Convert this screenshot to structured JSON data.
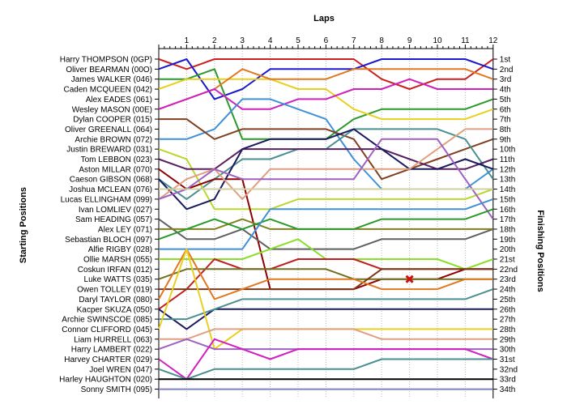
{
  "chart_data": {
    "type": "line",
    "title": "",
    "xlabel": "Laps",
    "ylabel_left": "Starting Positions",
    "ylabel_right": "Finishing Positions",
    "x": [
      0,
      1,
      2,
      3,
      4,
      5,
      6,
      7,
      8,
      9,
      10,
      11,
      12
    ],
    "x_tick_labels": [
      "1",
      "2",
      "3",
      "4",
      "5",
      "6",
      "7",
      "8",
      "9",
      "10",
      "11",
      "12"
    ],
    "ylim": [
      1,
      34
    ],
    "y_inverted": true,
    "grid": "vertical",
    "starting_labels": [
      "Harry THOMPSON (0GP)",
      "Oliver BEARMAN (00O)",
      "James WALKER (046)",
      "Caden MCQUEEN (042)",
      "Alex EADES (061)",
      "Wesley MASON (00E)",
      "Dylan COOPER (015)",
      "Oliver GREENALL (064)",
      "Archie BROWN (072)",
      "Justin BREWARD (031)",
      "Tom LEBBON (023)",
      "Aston MILLAR (070)",
      "Caeson GIBSON (068)",
      "Joshua MCLEAN (076)",
      "Lucas ELLINGHAM (099)",
      "Ivan LOMLIEV (027)",
      "Sam HEADING (057)",
      "Alex LEY (071)",
      "Sebastian BLOCH (097)",
      "Alfie RIGBY (028)",
      "Ollie MARSH (055)",
      "Coskun IRFAN (012)",
      "Luke WATTS (035)",
      "Owen TOLLEY (019)",
      "Daryl TAYLOR (080)",
      "Kacper SKUZA (050)",
      "Archie SWINSCOE (085)",
      "Connor CLIFFORD (045)",
      "Liam HURRELL (063)",
      "Harry LAMBERT (022)",
      "Harvey CHARTER (029)",
      "Joel WREN (047)",
      "Harley HAUGHTON (020)",
      "Sonny SMITH (095)"
    ],
    "finishing_labels": [
      "1st",
      "2nd",
      "3rd",
      "4th",
      "5th",
      "6th",
      "7th",
      "8th",
      "9th",
      "10th",
      "11th",
      "12th",
      "13th",
      "14th",
      "15th",
      "16th",
      "17th",
      "18th",
      "19th",
      "20th",
      "21st",
      "22nd",
      "23rd",
      "24th",
      "25th",
      "26th",
      "27th",
      "28th",
      "29th",
      "30th",
      "31st",
      "32nd",
      "33rd",
      "34th"
    ],
    "series": [
      {
        "name": "Harry THOMPSON (0GP)",
        "color": "#cc1f1f",
        "values": [
          1,
          2,
          1,
          1,
          1,
          1,
          1,
          1,
          3,
          4,
          3,
          3,
          1
        ]
      },
      {
        "name": "Oliver BEARMAN (00O)",
        "color": "#1a1acc",
        "values": [
          2,
          1,
          5,
          4,
          2,
          2,
          2,
          2,
          1,
          1,
          1,
          1,
          2
        ]
      },
      {
        "name": "James WALKER (046)",
        "color": "#2a9a2a",
        "values": [
          3,
          3,
          2,
          9,
          9,
          9,
          9,
          7,
          6,
          6,
          6,
          6,
          5
        ]
      },
      {
        "name": "Caden MCQUEEN (042)",
        "color": "#e8d020",
        "values": [
          4,
          3,
          3,
          3,
          3,
          4,
          4,
          6,
          7,
          7,
          7,
          7,
          6
        ]
      },
      {
        "name": "Alex EADES (061)",
        "color": "#e07820",
        "values": [
          6,
          5,
          4,
          2,
          3,
          3,
          3,
          2,
          2,
          2,
          2,
          2,
          3
        ]
      },
      {
        "name": "Wesley MASON (00E)",
        "color": "#d020c0",
        "values": [
          6,
          5,
          4,
          6,
          6,
          5,
          5,
          4,
          4,
          3,
          4,
          4,
          4
        ]
      },
      {
        "name": "Dylan COOPER (015)",
        "color": "#4090d8",
        "values": [
          9,
          9,
          8,
          5,
          5,
          6,
          7,
          11,
          14,
          14,
          14,
          14,
          12
        ]
      },
      {
        "name": "Oliver GREENALL (064)",
        "color": "#804020",
        "values": [
          7,
          7,
          9,
          8,
          8,
          8,
          8,
          9,
          13,
          12,
          11,
          10,
          9
        ]
      },
      {
        "name": "Archie BROWN (072)",
        "color": "#4a9090",
        "values": [
          13,
          15,
          13,
          11,
          11,
          10,
          10,
          8,
          8,
          8,
          8,
          9,
          13
        ]
      },
      {
        "name": "Justin BREWARD (031)",
        "color": "#b8d830",
        "values": [
          10,
          11,
          16,
          16,
          16,
          15,
          15,
          15,
          15,
          15,
          15,
          15,
          14
        ]
      },
      {
        "name": "Tom LEBBON (023)",
        "color": "#5a2060",
        "values": [
          11,
          12,
          12,
          10,
          10,
          10,
          10,
          10,
          10,
          11,
          12,
          12,
          11
        ]
      },
      {
        "name": "Aston MILLAR (070)",
        "color": "#900000",
        "values": [
          12,
          14,
          13,
          13,
          24,
          24,
          24,
          24,
          23,
          23,
          23,
          22,
          22
        ]
      },
      {
        "name": "Caeson GIBSON (068)",
        "color": "#1a1a60",
        "values": [
          13,
          16,
          15,
          10,
          9,
          9,
          9,
          8,
          10,
          12,
          12,
          11,
          12
        ]
      },
      {
        "name": "Joshua MCLEAN (076)",
        "color": "#e0a080",
        "values": [
          15,
          13,
          12,
          15,
          12,
          12,
          12,
          12,
          12,
          12,
          10,
          8,
          8
        ]
      },
      {
        "name": "Lucas ELLINGHAM (099)",
        "color": "#a060c0",
        "values": [
          15,
          14,
          12,
          13,
          13,
          13,
          13,
          13,
          9,
          9,
          9,
          13,
          17
        ]
      },
      {
        "name": "Ivan LOMLIEV (027)",
        "color": "#d0d0a0",
        "values": [
          14,
          14,
          14,
          14,
          14,
          14,
          14,
          14,
          14,
          14,
          14,
          14,
          14
        ]
      },
      {
        "name": "Sam HEADING (057)",
        "color": "#606060",
        "values": [
          17,
          19,
          19,
          18,
          20,
          20,
          20,
          20,
          19,
          19,
          19,
          19,
          18
        ]
      },
      {
        "name": "Alex LEY (071)",
        "color": "#808020",
        "values": [
          18,
          18,
          18,
          17,
          18,
          18,
          18,
          18,
          18,
          18,
          18,
          18,
          18
        ]
      },
      {
        "name": "Sebastian BLOCH (097)",
        "color": "#2a9a2a",
        "values": [
          19,
          18,
          17,
          18,
          17,
          18,
          18,
          18,
          17,
          17,
          17,
          17,
          16
        ]
      },
      {
        "name": "Alfie RIGBY (028)",
        "color": "#4090d8",
        "values": [
          20,
          20,
          20,
          20,
          16,
          16,
          16,
          16,
          16,
          16,
          16,
          16,
          15
        ]
      },
      {
        "name": "Ollie MARSH (055)",
        "color": "#88e028",
        "values": [
          21,
          21,
          21,
          21,
          20,
          19,
          21,
          21,
          21,
          21,
          21,
          22,
          21
        ]
      },
      {
        "name": "Coskun IRFAN (012)",
        "color": "#c02020",
        "values": [
          26,
          24,
          21,
          22,
          22,
          21,
          21,
          21,
          22,
          22,
          22,
          22,
          22
        ]
      },
      {
        "name": "Luke WATTS (035)",
        "color": "#707020",
        "values": [
          23,
          22,
          22,
          22,
          22,
          22,
          22,
          23,
          23,
          23,
          23,
          23,
          23
        ]
      },
      {
        "name": "Owen TOLLEY (019)",
        "color": "#7a3a1a",
        "values": [
          24,
          24,
          24,
          24,
          24,
          24,
          24,
          24,
          22,
          22,
          22,
          22,
          22
        ]
      },
      {
        "name": "Daryl TAYLOR (080)",
        "color": "#e07820",
        "values": [
          25,
          20,
          25,
          24,
          23,
          23,
          23,
          23,
          24,
          24,
          24,
          23,
          23
        ]
      },
      {
        "name": "Kacper SKUZA (050)",
        "color": "#1a1a60",
        "values": [
          26,
          28,
          26,
          26,
          26,
          26,
          26,
          26,
          26,
          26,
          26,
          26,
          26
        ]
      },
      {
        "name": "Archie SWINSCOE (085)",
        "color": "#4a9090",
        "values": [
          27,
          27,
          26,
          25,
          25,
          25,
          25,
          25,
          25,
          25,
          25,
          25,
          24
        ]
      },
      {
        "name": "Connor CLIFFORD (045)",
        "color": "#e8d020",
        "values": [
          28,
          20,
          30,
          28,
          28,
          28,
          28,
          28,
          28,
          28,
          28,
          28,
          28
        ]
      },
      {
        "name": "Liam HURRELL (063)",
        "color": "#e0a080",
        "values": [
          29,
          29,
          28,
          28,
          28,
          28,
          28,
          28,
          29,
          29,
          29,
          29,
          29
        ]
      },
      {
        "name": "Harry LAMBERT (022)",
        "color": "#a060c0",
        "values": [
          30,
          29,
          30,
          30,
          30,
          30,
          30,
          30,
          30,
          30,
          30,
          30,
          30
        ]
      },
      {
        "name": "Harvey CHARTER (029)",
        "color": "#d020c0",
        "values": [
          31,
          33,
          29,
          30,
          31,
          30,
          30,
          30,
          30,
          30,
          30,
          30,
          31
        ]
      },
      {
        "name": "Joel WREN (047)",
        "color": "#4a9090",
        "values": [
          32,
          33,
          32,
          32,
          32,
          32,
          32,
          32,
          31,
          31,
          31,
          31,
          31
        ]
      },
      {
        "name": "Harley HAUGHTON (020)",
        "color": "#000000",
        "values": [
          33,
          33,
          33,
          33,
          33,
          33,
          33,
          33,
          33,
          33,
          33,
          33,
          33
        ]
      },
      {
        "name": "Sonny SMITH (095)",
        "color": "#8080c0",
        "values": [
          34,
          34,
          34,
          34,
          34,
          34,
          34,
          34,
          34,
          34,
          34,
          34,
          34
        ]
      }
    ],
    "annotations": [
      {
        "marker": "red-x",
        "lap": 9,
        "position": 23
      }
    ]
  }
}
